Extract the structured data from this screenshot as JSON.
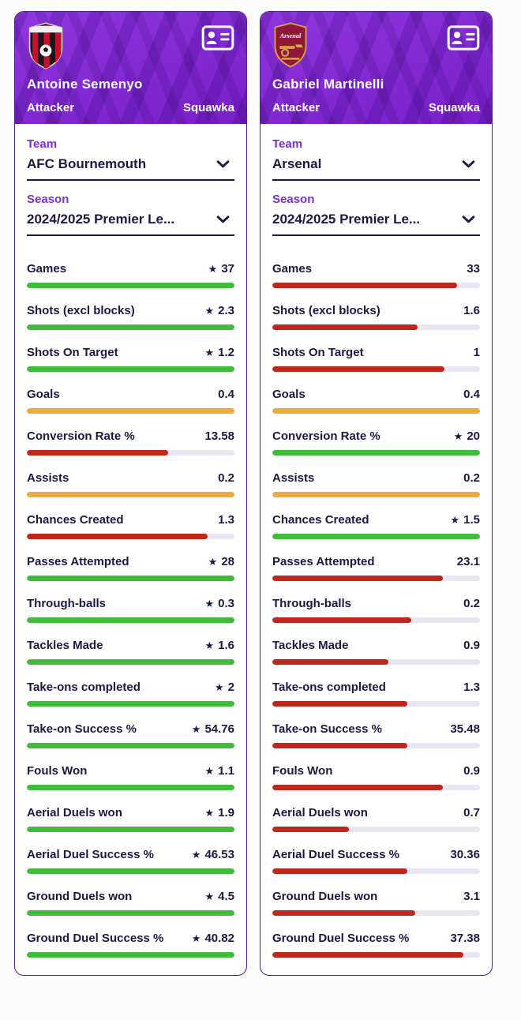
{
  "colors": {
    "green": "#3fbc3a",
    "amber": "#eeab3a",
    "red": "#bf271b",
    "track": "#e9e6f4",
    "purple": "#7b2fd6",
    "navy": "#1d1742",
    "header_purple": "#8229d4"
  },
  "icons": {
    "star": "★"
  },
  "cards": [
    {
      "player": "Antoine Semenyo",
      "position": "Attacker",
      "brand": "Squawka",
      "club": "AFC Bournemouth",
      "team_label": "Team",
      "team_value": "AFC Bournemouth",
      "season_label": "Season",
      "season_value": "2024/2025 Premier Le...",
      "stats": [
        {
          "label": "Games",
          "value": "37",
          "star": true,
          "color": "green",
          "fill": 100
        },
        {
          "label": "Shots (excl blocks)",
          "value": "2.3",
          "star": true,
          "color": "green",
          "fill": 100
        },
        {
          "label": "Shots On Target",
          "value": "1.2",
          "star": true,
          "color": "green",
          "fill": 100
        },
        {
          "label": "Goals",
          "value": "0.4",
          "star": false,
          "color": "amber",
          "fill": 100
        },
        {
          "label": "Conversion Rate %",
          "value": "13.58",
          "star": false,
          "color": "red",
          "fill": 68
        },
        {
          "label": "Assists",
          "value": "0.2",
          "star": false,
          "color": "amber",
          "fill": 100
        },
        {
          "label": "Chances Created",
          "value": "1.3",
          "star": false,
          "color": "red",
          "fill": 87
        },
        {
          "label": "Passes Attempted",
          "value": "28",
          "star": true,
          "color": "green",
          "fill": 100
        },
        {
          "label": "Through-balls",
          "value": "0.3",
          "star": true,
          "color": "green",
          "fill": 100
        },
        {
          "label": "Tackles Made",
          "value": "1.6",
          "star": true,
          "color": "green",
          "fill": 100
        },
        {
          "label": "Take-ons completed",
          "value": "2",
          "star": true,
          "color": "green",
          "fill": 100
        },
        {
          "label": "Take-on Success %",
          "value": "54.76",
          "star": true,
          "color": "green",
          "fill": 100
        },
        {
          "label": "Fouls Won",
          "value": "1.1",
          "star": true,
          "color": "green",
          "fill": 100
        },
        {
          "label": "Aerial Duels won",
          "value": "1.9",
          "star": true,
          "color": "green",
          "fill": 100
        },
        {
          "label": "Aerial Duel Success %",
          "value": "46.53",
          "star": true,
          "color": "green",
          "fill": 100
        },
        {
          "label": "Ground Duels won",
          "value": "4.5",
          "star": true,
          "color": "green",
          "fill": 100
        },
        {
          "label": "Ground Duel Success %",
          "value": "40.82",
          "star": true,
          "color": "green",
          "fill": 100
        }
      ]
    },
    {
      "player": "Gabriel Martinelli",
      "position": "Attacker",
      "brand": "Squawka",
      "club": "Arsenal",
      "team_label": "Team",
      "team_value": "Arsenal",
      "season_label": "Season",
      "season_value": "2024/2025 Premier Le...",
      "stats": [
        {
          "label": "Games",
          "value": "33",
          "star": false,
          "color": "red",
          "fill": 89
        },
        {
          "label": "Shots (excl blocks)",
          "value": "1.6",
          "star": false,
          "color": "red",
          "fill": 70
        },
        {
          "label": "Shots On Target",
          "value": "1",
          "star": false,
          "color": "red",
          "fill": 83
        },
        {
          "label": "Goals",
          "value": "0.4",
          "star": false,
          "color": "amber",
          "fill": 100
        },
        {
          "label": "Conversion Rate %",
          "value": "20",
          "star": true,
          "color": "green",
          "fill": 100
        },
        {
          "label": "Assists",
          "value": "0.2",
          "star": false,
          "color": "amber",
          "fill": 100
        },
        {
          "label": "Chances Created",
          "value": "1.5",
          "star": true,
          "color": "green",
          "fill": 100
        },
        {
          "label": "Passes Attempted",
          "value": "23.1",
          "star": false,
          "color": "red",
          "fill": 82
        },
        {
          "label": "Through-balls",
          "value": "0.2",
          "star": false,
          "color": "red",
          "fill": 67
        },
        {
          "label": "Tackles Made",
          "value": "0.9",
          "star": false,
          "color": "red",
          "fill": 56
        },
        {
          "label": "Take-ons completed",
          "value": "1.3",
          "star": false,
          "color": "red",
          "fill": 65
        },
        {
          "label": "Take-on Success %",
          "value": "35.48",
          "star": false,
          "color": "red",
          "fill": 65
        },
        {
          "label": "Fouls Won",
          "value": "0.9",
          "star": false,
          "color": "red",
          "fill": 82
        },
        {
          "label": "Aerial Duels won",
          "value": "0.7",
          "star": false,
          "color": "red",
          "fill": 37
        },
        {
          "label": "Aerial Duel Success %",
          "value": "30.36",
          "star": false,
          "color": "red",
          "fill": 65
        },
        {
          "label": "Ground Duels won",
          "value": "3.1",
          "star": false,
          "color": "red",
          "fill": 69
        },
        {
          "label": "Ground Duel Success %",
          "value": "37.38",
          "star": false,
          "color": "red",
          "fill": 92
        }
      ]
    }
  ]
}
